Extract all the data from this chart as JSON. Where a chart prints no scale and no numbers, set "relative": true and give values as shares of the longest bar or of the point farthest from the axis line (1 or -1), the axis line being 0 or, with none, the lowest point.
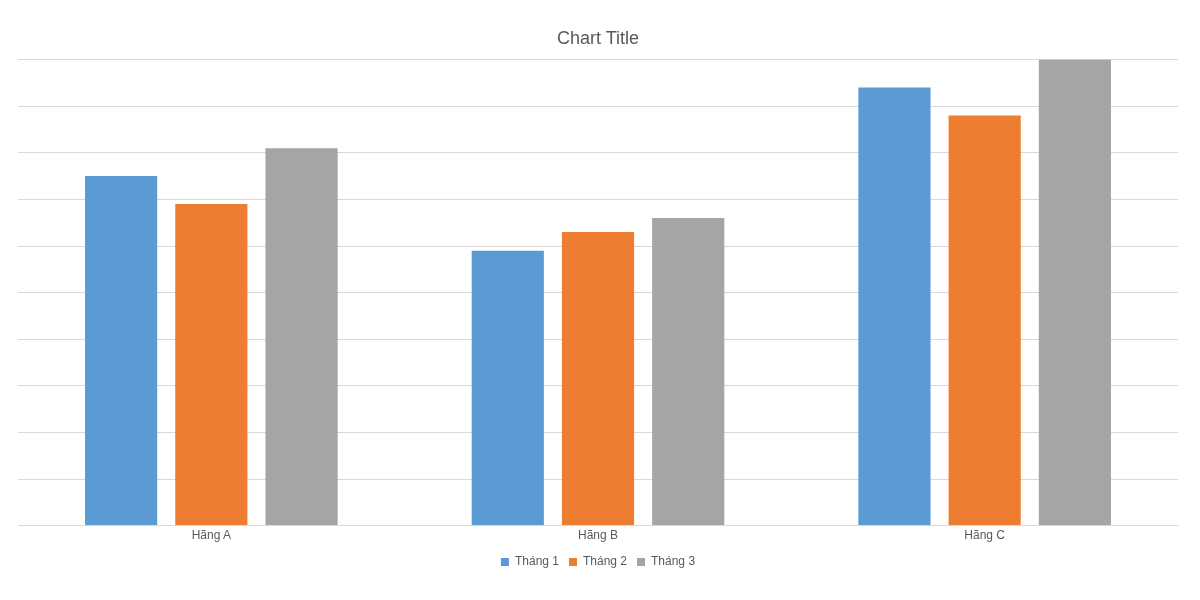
{
  "chart_data": {
    "type": "bar",
    "title": "Chart Title",
    "categories": [
      "Hãng A",
      "Hãng B",
      "Hãng C"
    ],
    "relative": true,
    "grid": "y",
    "legend": "bottom",
    "series": [
      {
        "name": "Tháng 1",
        "color": "#5b9bd5",
        "values": [
          0.75,
          0.59,
          0.94
        ]
      },
      {
        "name": "Tháng 2",
        "color": "#ed7d31",
        "values": [
          0.69,
          0.63,
          0.88
        ]
      },
      {
        "name": "Tháng 3",
        "color": "#a5a5a5",
        "values": [
          0.81,
          0.66,
          1
        ]
      }
    ]
  }
}
